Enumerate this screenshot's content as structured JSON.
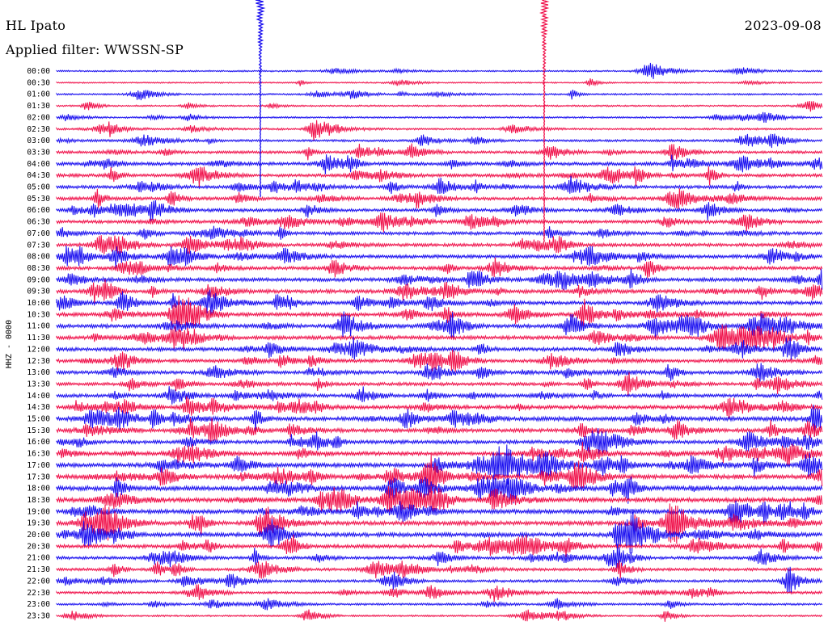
{
  "header": {
    "station": "HL Ipato",
    "date": "2023-09-08",
    "filter": "Applied filter: WWSSN-SP"
  },
  "chart_data": {
    "type": "line",
    "title": "HL Ipato",
    "channel_label": "HHZ - 0000",
    "date": "2023-09-08",
    "filter": "WWSSN-SP",
    "row_interval_minutes": 30,
    "trace_colors": [
      "#1a0ff0",
      "#f0104a"
    ],
    "rows": [
      {
        "label": "00:00",
        "activity": 0.15
      },
      {
        "label": "00:30",
        "activity": 0.1
      },
      {
        "label": "01:00",
        "activity": 0.2
      },
      {
        "label": "01:30",
        "activity": 0.15
      },
      {
        "label": "02:00",
        "activity": 0.2
      },
      {
        "label": "02:30",
        "activity": 0.25
      },
      {
        "label": "03:00",
        "activity": 0.35
      },
      {
        "label": "03:30",
        "activity": 0.45
      },
      {
        "label": "04:00",
        "activity": 0.65
      },
      {
        "label": "04:30",
        "activity": 0.6
      },
      {
        "label": "05:00",
        "activity": 0.6
      },
      {
        "label": "05:30",
        "activity": 0.6
      },
      {
        "label": "06:00",
        "activity": 0.6
      },
      {
        "label": "06:30",
        "activity": 0.6
      },
      {
        "label": "07:00",
        "activity": 0.6
      },
      {
        "label": "07:30",
        "activity": 0.6
      },
      {
        "label": "08:00",
        "activity": 0.65
      },
      {
        "label": "08:30",
        "activity": 0.65
      },
      {
        "label": "09:00",
        "activity": 0.7
      },
      {
        "label": "09:30",
        "activity": 0.75
      },
      {
        "label": "10:00",
        "activity": 0.7
      },
      {
        "label": "10:30",
        "activity": 0.75
      },
      {
        "label": "11:00",
        "activity": 0.75
      },
      {
        "label": "11:30",
        "activity": 0.75
      },
      {
        "label": "12:00",
        "activity": 0.7
      },
      {
        "label": "12:30",
        "activity": 0.65
      },
      {
        "label": "13:00",
        "activity": 0.65
      },
      {
        "label": "13:30",
        "activity": 0.6
      },
      {
        "label": "14:00",
        "activity": 0.65
      },
      {
        "label": "14:30",
        "activity": 0.75
      },
      {
        "label": "15:00",
        "activity": 0.85
      },
      {
        "label": "15:30",
        "activity": 0.75
      },
      {
        "label": "16:00",
        "activity": 0.7
      },
      {
        "label": "16:30",
        "activity": 0.75
      },
      {
        "label": "17:00",
        "activity": 0.85
      },
      {
        "label": "17:30",
        "activity": 0.9
      },
      {
        "label": "18:00",
        "activity": 0.95
      },
      {
        "label": "18:30",
        "activity": 0.9
      },
      {
        "label": "19:00",
        "activity": 0.85
      },
      {
        "label": "19:30",
        "activity": 0.85
      },
      {
        "label": "20:00",
        "activity": 0.85
      },
      {
        "label": "20:30",
        "activity": 0.7
      },
      {
        "label": "21:00",
        "activity": 0.55
      },
      {
        "label": "21:30",
        "activity": 0.5
      },
      {
        "label": "22:00",
        "activity": 0.45
      },
      {
        "label": "22:30",
        "activity": 0.4
      },
      {
        "label": "23:00",
        "activity": 0.3
      },
      {
        "label": "23:30",
        "activity": 0.2
      }
    ]
  }
}
